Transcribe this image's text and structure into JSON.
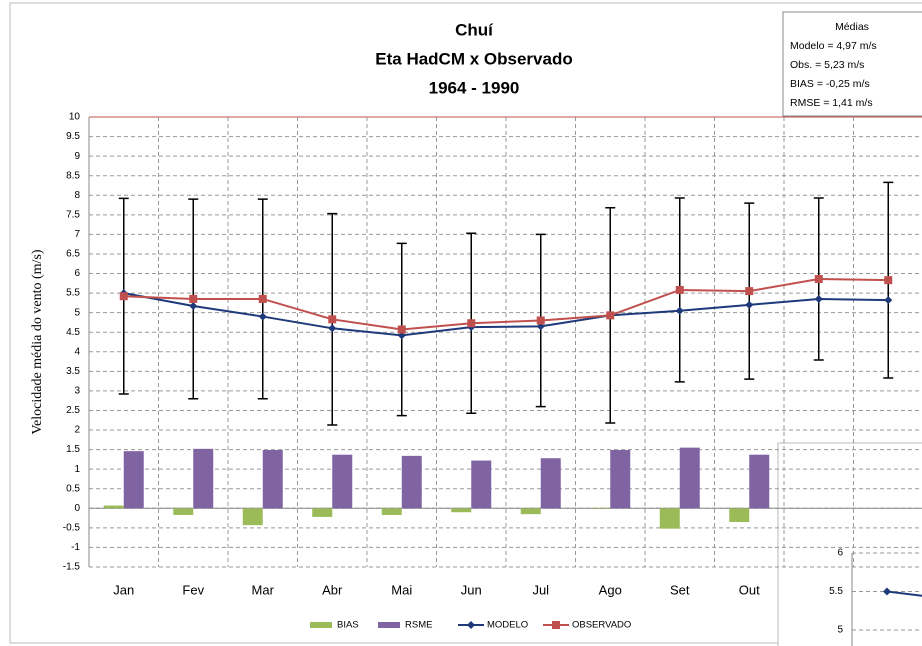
{
  "chart_data": [
    {
      "type": "combo",
      "title": [
        "Chuí",
        "Eta  HadCM x Observado",
        "1964 - 1990"
      ],
      "y_label": "Velocidade média do vento (m/s)",
      "categories": [
        "Jan",
        "Fev",
        "Mar",
        "Abr",
        "Mai",
        "Jun",
        "Jul",
        "Ago",
        "Set",
        "Out",
        null,
        null
      ],
      "ylim": [
        -1.5,
        10
      ],
      "yticks": [
        -1.5,
        -1,
        -0.5,
        0,
        0.5,
        1,
        1.5,
        2,
        2.5,
        3,
        3.5,
        4,
        4.5,
        5,
        5.5,
        6,
        6.5,
        7,
        7.5,
        8,
        8.5,
        9,
        9.5,
        10
      ],
      "grid": true,
      "legend": "bottom",
      "series": [
        {
          "name": "MODELO",
          "kind": "line",
          "marker": "diamond",
          "color": "#1f3a7a",
          "values": [
            5.5,
            5.17,
            4.9,
            4.6,
            4.42,
            4.63,
            4.65,
            4.93,
            5.05,
            5.2,
            5.35,
            5.32
          ]
        },
        {
          "name": "OBSERVADO",
          "kind": "line",
          "marker": "square",
          "color": "#c0504d",
          "values": [
            5.42,
            5.35,
            5.35,
            4.83,
            4.57,
            4.73,
            4.8,
            4.93,
            5.58,
            5.55,
            5.86,
            5.83
          ],
          "errors": [
            2.5,
            2.55,
            2.55,
            2.7,
            2.2,
            2.3,
            2.2,
            2.75,
            2.35,
            2.25,
            2.07,
            2.5
          ]
        },
        {
          "name": "BIAS",
          "kind": "bar",
          "color": "#9bbb59",
          "values": [
            0.07,
            -0.17,
            -0.43,
            -0.22,
            -0.17,
            -0.1,
            -0.15,
            0,
            -0.52,
            -0.35,
            null,
            null
          ]
        },
        {
          "name": "RSME",
          "kind": "bar",
          "color": "#8064a2",
          "values": [
            1.46,
            1.52,
            1.49,
            1.37,
            1.34,
            1.22,
            1.28,
            1.49,
            1.55,
            1.37,
            null,
            null
          ]
        }
      ],
      "annotations": [
        "Médias",
        "Modelo = 4,97 m/s",
        "Obs. = 5,23 m/s",
        "BIAS = -0,25 m/s",
        "RMSE = 1,41 m/s"
      ]
    },
    {
      "type": "line",
      "ylim": [
        5,
        6
      ],
      "yticks": [
        5,
        5.5,
        6
      ],
      "series": [
        {
          "color": "#1f3a7a",
          "values": [
            5.5,
            5.39
          ]
        }
      ]
    }
  ]
}
